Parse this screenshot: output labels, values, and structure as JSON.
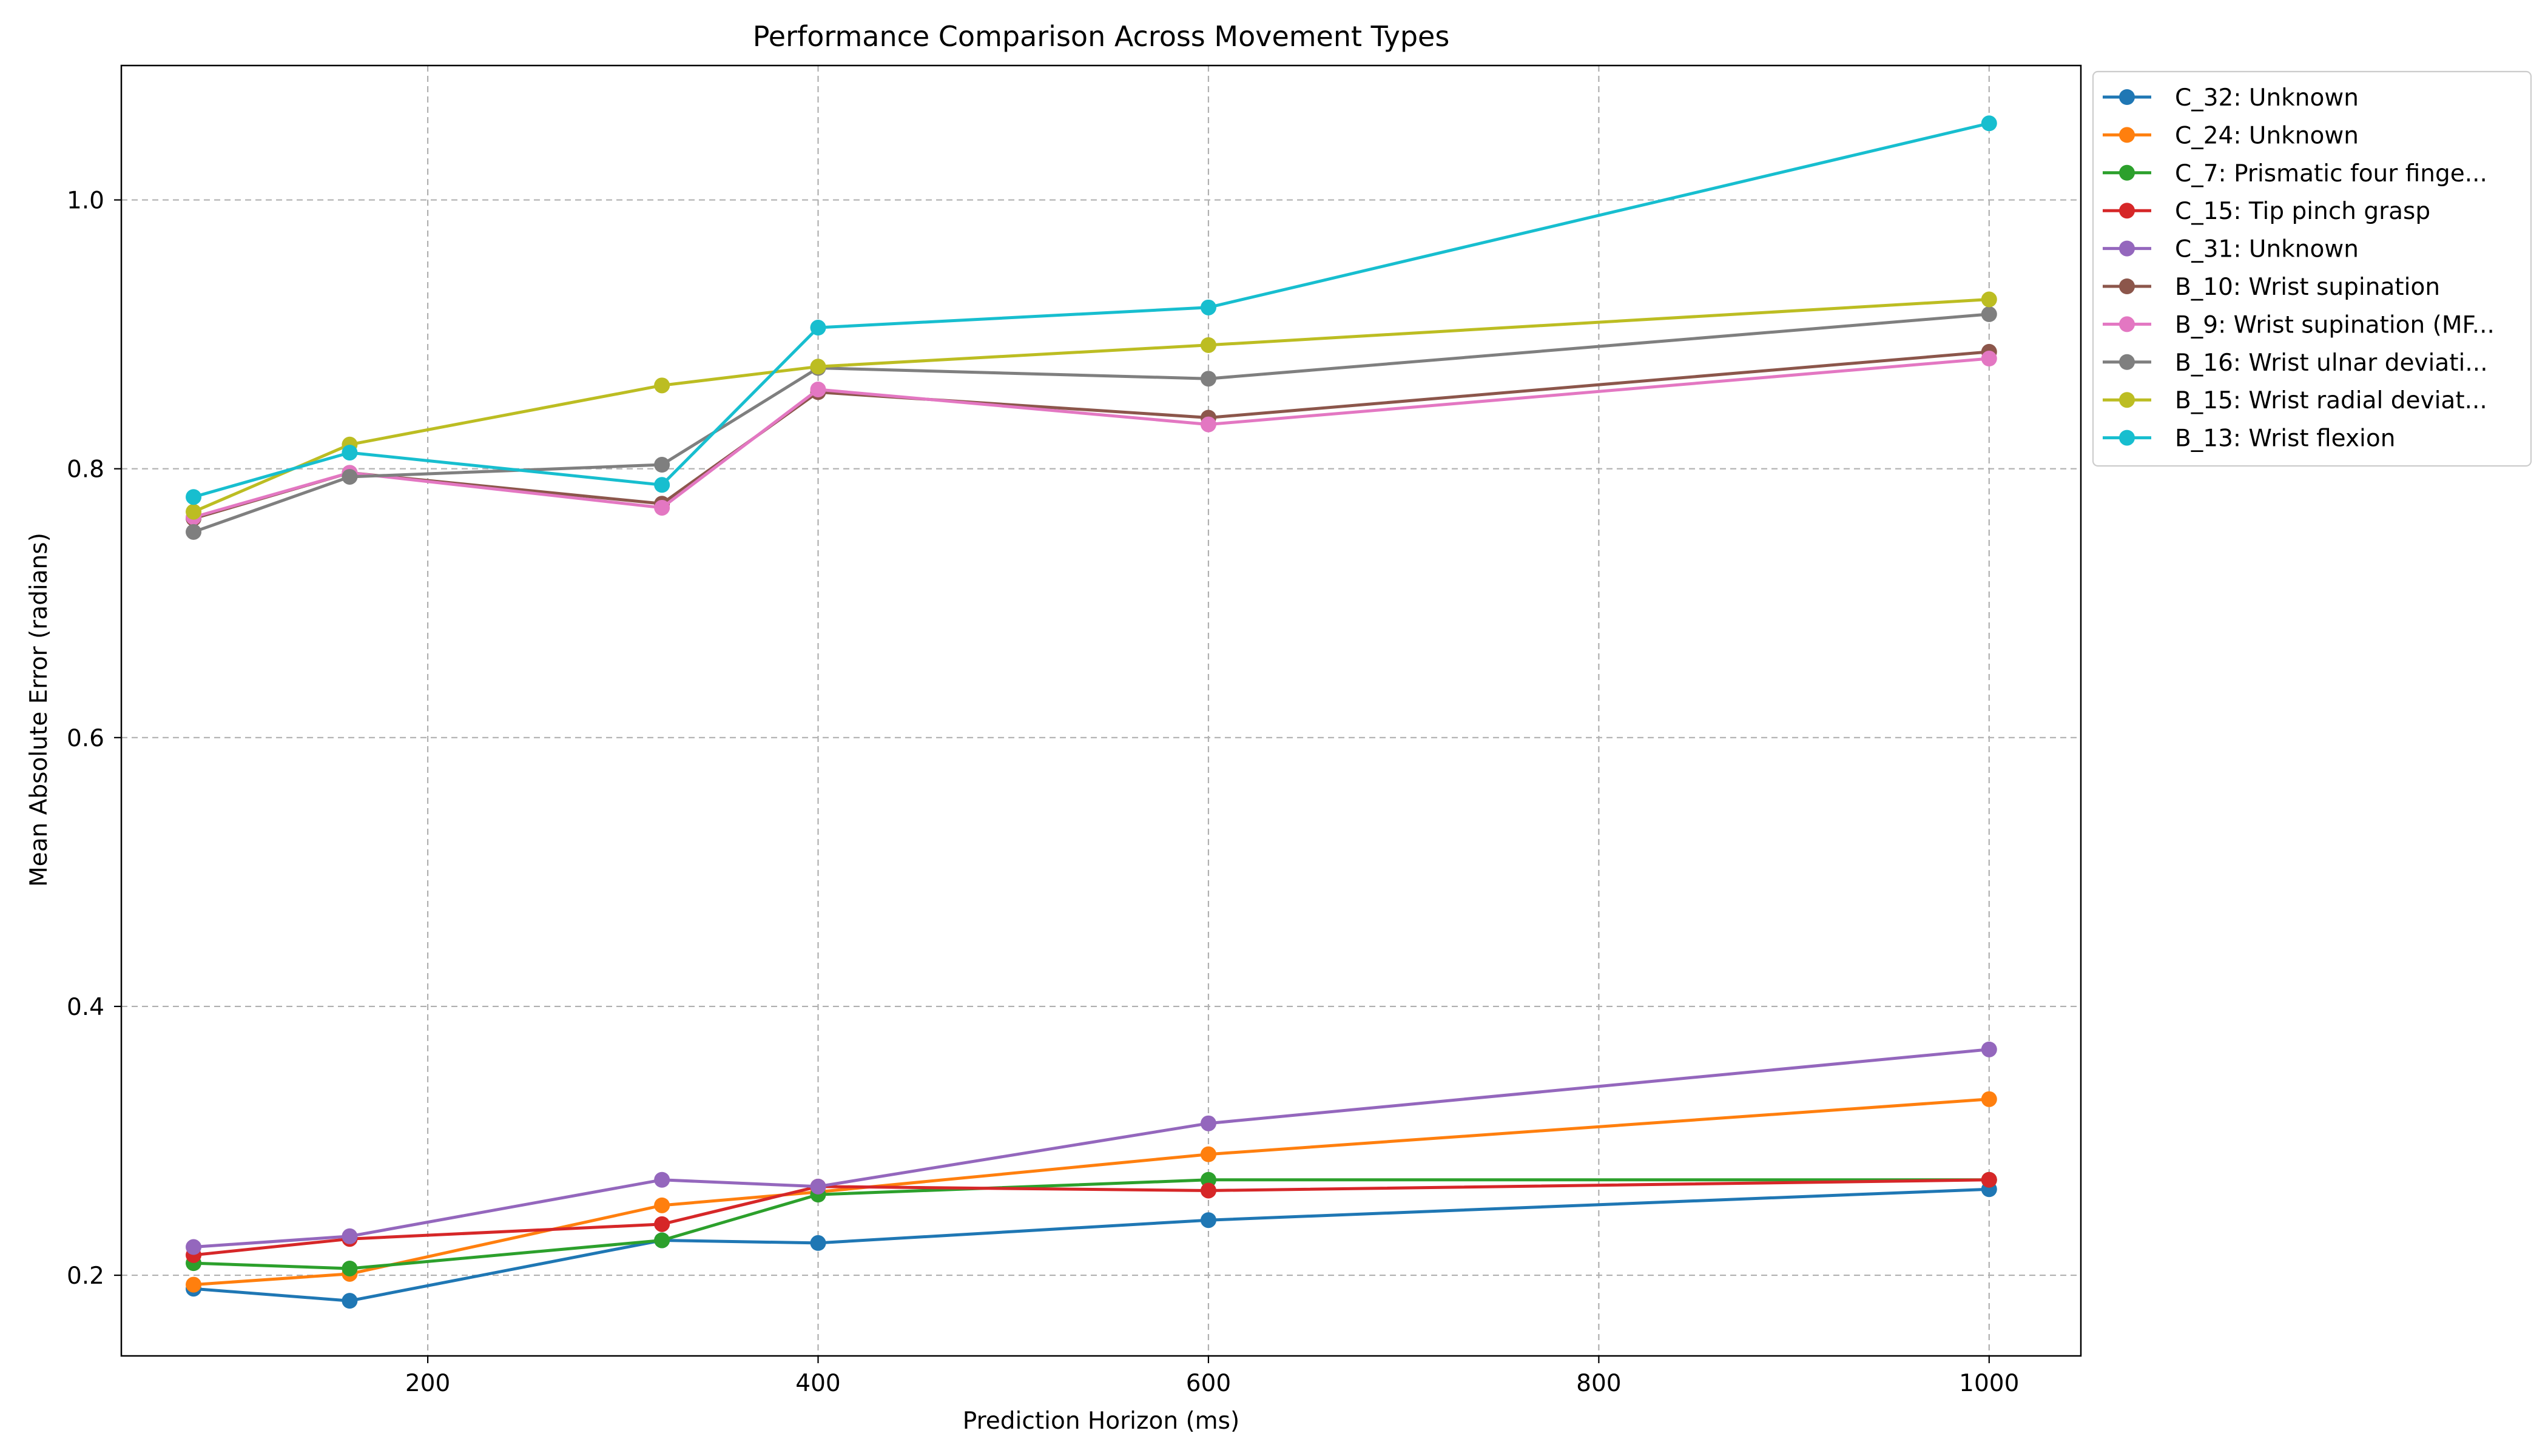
{
  "chart_data": {
    "type": "line",
    "title": "Performance Comparison Across Movement Types",
    "xlabel": "Prediction Horizon (ms)",
    "ylabel": "Mean Absolute Error (radians)",
    "xlim": [
      43,
      1047
    ],
    "ylim": [
      0.14,
      1.1
    ],
    "xticks": [
      200,
      400,
      600,
      800,
      1000
    ],
    "yticks": [
      0.2,
      0.4,
      0.6,
      0.8,
      1.0
    ],
    "xtick_labels": [
      "200",
      "400",
      "600",
      "800",
      "1000"
    ],
    "ytick_labels": [
      "0.2",
      "0.4",
      "0.6",
      "0.8",
      "1.0"
    ],
    "grid": true,
    "legend_position": "outside-right-top",
    "x": [
      80,
      160,
      320,
      400,
      600,
      1000
    ],
    "series": [
      {
        "name": "C_32: Unknown",
        "color": "#1f77b4",
        "values": [
          0.19,
          0.181,
          0.226,
          0.224,
          0.241,
          0.264
        ]
      },
      {
        "name": "C_24: Unknown",
        "color": "#ff7f0e",
        "values": [
          0.193,
          0.201,
          0.252,
          0.262,
          0.29,
          0.331
        ]
      },
      {
        "name": "C_7: Prismatic four finge...",
        "color": "#2ca02c",
        "values": [
          0.209,
          0.205,
          0.226,
          0.26,
          0.271,
          0.271
        ]
      },
      {
        "name": "C_15: Tip pinch grasp",
        "color": "#d62728",
        "values": [
          0.215,
          0.227,
          0.238,
          0.266,
          0.263,
          0.271
        ]
      },
      {
        "name": "C_31: Unknown",
        "color": "#9467bd",
        "values": [
          0.221,
          0.229,
          0.271,
          0.266,
          0.313,
          0.368
        ]
      },
      {
        "name": "B_10: Wrist supination",
        "color": "#8c564b",
        "values": [
          0.763,
          0.797,
          0.774,
          0.857,
          0.838,
          0.887
        ]
      },
      {
        "name": "B_9: Wrist supination (MF...",
        "color": "#e377c2",
        "values": [
          0.764,
          0.797,
          0.771,
          0.859,
          0.833,
          0.882
        ]
      },
      {
        "name": "B_16: Wrist ulnar deviati...",
        "color": "#7f7f7f",
        "values": [
          0.753,
          0.794,
          0.803,
          0.875,
          0.867,
          0.915
        ]
      },
      {
        "name": "B_15: Wrist radial deviat...",
        "color": "#bcbd22",
        "values": [
          0.768,
          0.818,
          0.862,
          0.876,
          0.892,
          0.926
        ]
      },
      {
        "name": "B_13: Wrist flexion",
        "color": "#17becf",
        "values": [
          0.779,
          0.812,
          0.788,
          0.905,
          0.92,
          1.057
        ]
      }
    ]
  }
}
